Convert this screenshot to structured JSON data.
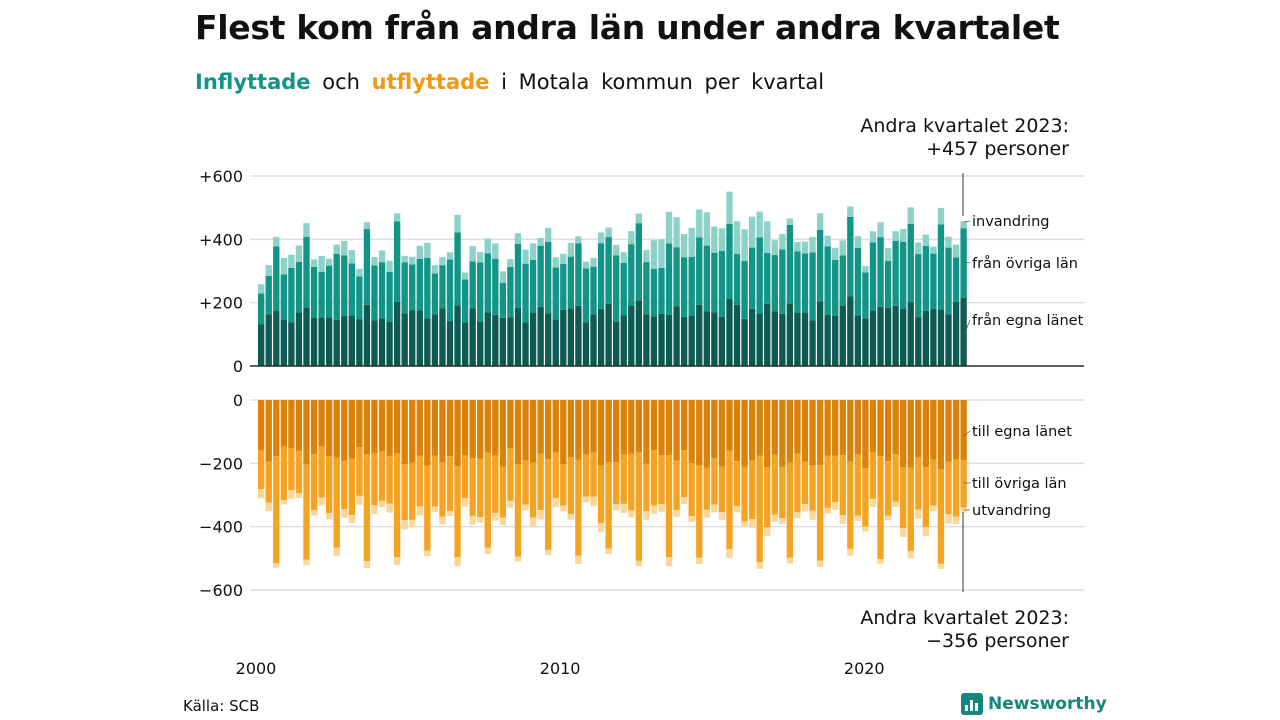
{
  "title": "Flest kom från andra län under andra kvartalet",
  "subtitle": {
    "in_label": "Inflyttade",
    "and_word": "och",
    "out_label": "utflyttade",
    "rest": "i Motala kommun per kvartal"
  },
  "annotation_top": [
    "Andra kvartalet 2023:",
    "+457 personer"
  ],
  "annotation_bottom": [
    "Andra kvartalet 2023:",
    "−356 personer"
  ],
  "source": "Källa: SCB",
  "brand": "Newsworthy",
  "colors": {
    "in_own": "#0e5b54",
    "in_other": "#129487",
    "in_immigration": "#8dd2c9",
    "out_own": "#d9830a",
    "out_other": "#f4a422",
    "out_emigration": "#f9d79a",
    "brand": "#15867b"
  },
  "chart_data": {
    "type": "bar",
    "stacked": true,
    "x_ticks": [
      "2000",
      "2010",
      "2020"
    ],
    "x_range": [
      "2000 Q1",
      "2023 Q2"
    ],
    "top_panel": {
      "ylim": [
        0,
        600
      ],
      "y_ticks": [
        {
          "value": 0,
          "label": "0"
        },
        {
          "value": 200,
          "label": "+200"
        },
        {
          "value": 400,
          "label": "+400"
        },
        {
          "value": 600,
          "label": "+600"
        }
      ],
      "series": [
        {
          "name": "från egna länet",
          "base": 150,
          "spread": 28
        },
        {
          "name": "från övriga län",
          "base": 155,
          "spread": 40
        },
        {
          "name": "invandring",
          "base": 30,
          "spread": 18
        }
      ],
      "last_quarter": {
        "from_own_county": 215,
        "from_other_counties": 220,
        "immigration": 22,
        "total": 457
      }
    },
    "bottom_panel": {
      "ylim": [
        -600,
        0
      ],
      "y_ticks": [
        {
          "value": 0,
          "label": "0"
        },
        {
          "value": -200,
          "label": "−200"
        },
        {
          "value": -400,
          "label": "−400"
        },
        {
          "value": -600,
          "label": "−600"
        }
      ],
      "series": [
        {
          "name": "till egna länet",
          "base": 175,
          "spread": 30
        },
        {
          "name": "till övriga län",
          "base": 150,
          "spread": 30
        },
        {
          "name": "utvandring",
          "base": 14,
          "spread": 8
        }
      ],
      "q3_peak_out": 510,
      "last_quarter": {
        "to_own_county": 190,
        "to_other_counties": 150,
        "emigration": 16,
        "total": 356
      }
    }
  }
}
